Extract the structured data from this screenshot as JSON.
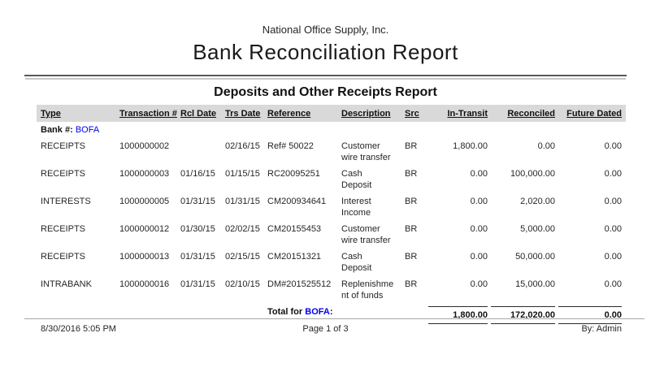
{
  "header": {
    "company": "National Office Supply, Inc.",
    "title": "Bank Reconciliation Report",
    "subtitle": "Deposits and Other Receipts Report"
  },
  "table": {
    "columns": [
      {
        "key": "type",
        "label": "Type"
      },
      {
        "key": "transaction",
        "label": "Transaction #"
      },
      {
        "key": "rcl_date",
        "label": "Rcl Date"
      },
      {
        "key": "trs_date",
        "label": "Trs Date"
      },
      {
        "key": "reference",
        "label": "Reference"
      },
      {
        "key": "description",
        "label": "Description"
      },
      {
        "key": "src",
        "label": "Src"
      },
      {
        "key": "in_transit",
        "label": "In-Transit"
      },
      {
        "key": "reconciled",
        "label": "Reconciled"
      },
      {
        "key": "future_dated",
        "label": "Future Dated"
      }
    ],
    "bank_label": "Bank #:",
    "bank_value": "BOFA",
    "rows": [
      {
        "type": "RECEIPTS",
        "transaction": "1000000002",
        "rcl_date": "",
        "trs_date": "02/16/15",
        "reference": "Ref# 50022",
        "description": "Customer wire transfer",
        "src": "BR",
        "in_transit": "1,800.00",
        "reconciled": "0.00",
        "future_dated": "0.00"
      },
      {
        "type": "RECEIPTS",
        "transaction": "1000000003",
        "rcl_date": "01/16/15",
        "trs_date": "01/15/15",
        "reference": "RC20095251",
        "description": "Cash Deposit",
        "src": "BR",
        "in_transit": "0.00",
        "reconciled": "100,000.00",
        "future_dated": "0.00"
      },
      {
        "type": "INTERESTS",
        "transaction": "1000000005",
        "rcl_date": "01/31/15",
        "trs_date": "01/31/15",
        "reference": "CM200934641",
        "description": "Interest Income",
        "src": "BR",
        "in_transit": "0.00",
        "reconciled": "2,020.00",
        "future_dated": "0.00"
      },
      {
        "type": "RECEIPTS",
        "transaction": "1000000012",
        "rcl_date": "01/30/15",
        "trs_date": "02/02/15",
        "reference": "CM20155453",
        "description": "Customer wire transfer",
        "src": "BR",
        "in_transit": "0.00",
        "reconciled": "5,000.00",
        "future_dated": "0.00"
      },
      {
        "type": "RECEIPTS",
        "transaction": "1000000013",
        "rcl_date": "01/31/15",
        "trs_date": "02/15/15",
        "reference": "CM20151321",
        "description": "Cash Deposit",
        "src": "BR",
        "in_transit": "0.00",
        "reconciled": "50,000.00",
        "future_dated": "0.00"
      },
      {
        "type": "INTRABANK",
        "transaction": "1000000016",
        "rcl_date": "01/31/15",
        "trs_date": "02/10/15",
        "reference": "DM#201525512",
        "description": "Replenishment of funds",
        "src": "BR",
        "in_transit": "0.00",
        "reconciled": "15,000.00",
        "future_dated": "0.00"
      }
    ],
    "total": {
      "label": "Total for",
      "bank": "BOFA",
      "colon": ":",
      "in_transit": "1,800.00",
      "reconciled": "172,020.00",
      "future_dated": "0.00"
    }
  },
  "footer": {
    "printed": "8/30/2016 5:05 PM",
    "page": "Page 1 of 3",
    "user": "By: Admin"
  },
  "colors": {
    "header_band": "#d9d9d9",
    "link_blue": "#0000ee",
    "rule_dark": "#595959",
    "rule_light": "#c6c6c6"
  }
}
